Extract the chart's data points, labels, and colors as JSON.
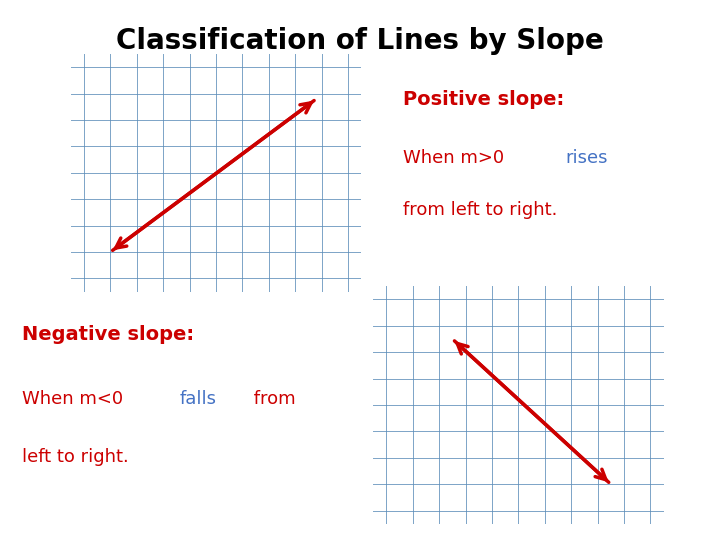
{
  "title": "Classification of Lines by Slope",
  "title_fontsize": 20,
  "title_fontweight": "bold",
  "bg_color": "#ffffff",
  "grid_color": "#5b8db8",
  "axis_color": "#5b8db8",
  "line_color": "#cc0000",
  "pos_label_bold": "Positive slope:",
  "neg_label_bold": "Negative slope:",
  "label_color": "#cc0000",
  "blue_color": "#4472c4",
  "label_fontsize": 13,
  "xlim": [
    -5.5,
    5.5
  ],
  "ylim": [
    -4.5,
    4.5
  ]
}
